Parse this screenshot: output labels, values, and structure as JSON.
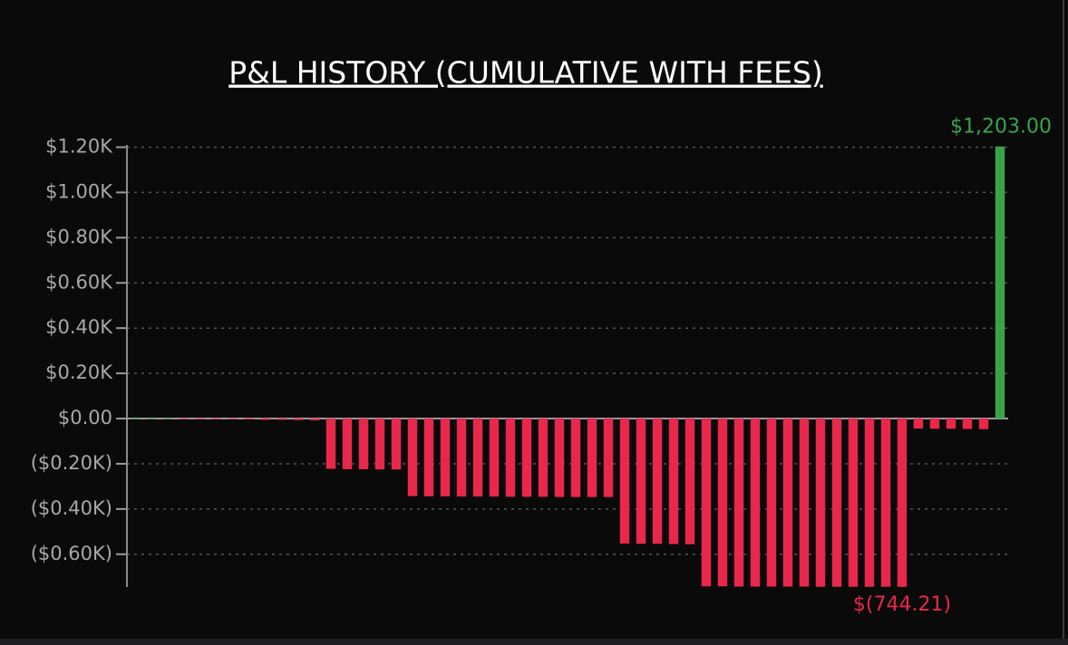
{
  "chart_data": {
    "type": "bar",
    "title": "P&L HISTORY (CUMULATIVE WITH FEES)",
    "values": [
      0,
      0,
      0,
      -1,
      -2,
      -3,
      -3,
      -4,
      -6,
      -6,
      -7,
      -8,
      -222,
      -224,
      -224,
      -225,
      -225,
      -343,
      -344,
      -344,
      -345,
      -345,
      -345,
      -346,
      -346,
      -346,
      -347,
      -347,
      -347,
      -347,
      -553,
      -554,
      -554,
      -555,
      -556,
      -742,
      -742,
      -743,
      -743,
      -743,
      -743,
      -743,
      -744,
      -744,
      -744,
      -744,
      -744,
      -744.21,
      -44,
      -45,
      -45,
      -46,
      -47,
      1203
    ],
    "value_labels": [
      null,
      null,
      null,
      null,
      null,
      null,
      null,
      null,
      null,
      null,
      null,
      null,
      null,
      null,
      null,
      null,
      null,
      null,
      null,
      null,
      null,
      null,
      null,
      null,
      null,
      null,
      null,
      null,
      null,
      null,
      null,
      null,
      null,
      null,
      null,
      null,
      null,
      null,
      null,
      null,
      null,
      null,
      null,
      null,
      null,
      null,
      null,
      "$(744.21)",
      null,
      null,
      null,
      null,
      null,
      "$1,203.00"
    ],
    "positive_color": "#3aa34a",
    "negative_color": "#e8284a",
    "ylim": [
      -745,
      1210
    ],
    "yticks": [
      {
        "value": -600,
        "label": "($0.60K)"
      },
      {
        "value": -400,
        "label": "($0.40K)"
      },
      {
        "value": -200,
        "label": "($0.20K)"
      },
      {
        "value": 0,
        "label": "$0.00"
      },
      {
        "value": 200,
        "label": "$0.20K"
      },
      {
        "value": 400,
        "label": "$0.40K"
      },
      {
        "value": 600,
        "label": "$0.60K"
      },
      {
        "value": 800,
        "label": "$0.80K"
      },
      {
        "value": 1000,
        "label": "$1.00K"
      },
      {
        "value": 1200,
        "label": "$1.20K"
      }
    ],
    "grid": true
  }
}
